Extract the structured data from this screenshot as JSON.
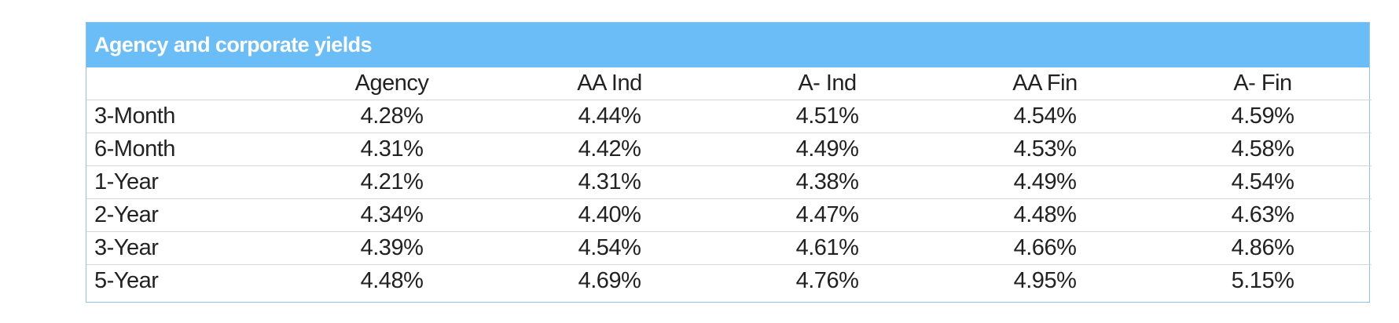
{
  "chart_data": {
    "type": "table",
    "title": "Agency and corporate yields",
    "columns": [
      "",
      "Agency",
      "AA Ind",
      "A- Ind",
      "AA Fin",
      "A- Fin"
    ],
    "rows": [
      {
        "label": "3-Month",
        "values": [
          "4.28%",
          "4.44%",
          "4.51%",
          "4.54%",
          "4.59%"
        ]
      },
      {
        "label": "6-Month",
        "values": [
          "4.31%",
          "4.42%",
          "4.49%",
          "4.53%",
          "4.58%"
        ]
      },
      {
        "label": "1-Year",
        "values": [
          "4.21%",
          "4.31%",
          "4.38%",
          "4.49%",
          "4.54%"
        ]
      },
      {
        "label": "2-Year",
        "values": [
          "4.34%",
          "4.40%",
          "4.47%",
          "4.48%",
          "4.63%"
        ]
      },
      {
        "label": "3-Year",
        "values": [
          "4.39%",
          "4.54%",
          "4.61%",
          "4.66%",
          "4.86%"
        ]
      },
      {
        "label": "5-Year",
        "values": [
          "4.48%",
          "4.69%",
          "4.76%",
          "4.95%",
          "5.15%"
        ]
      }
    ],
    "colors": {
      "header_background": "#6bbdf8",
      "header_text": "#ffffff",
      "border": "#8fc4ea",
      "row_divider": "#d6d6d6"
    }
  }
}
